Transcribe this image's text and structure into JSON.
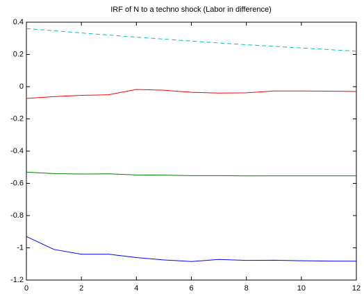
{
  "chart_data": {
    "type": "line",
    "title": "IRF of N to a techno shock (Labor in difference)",
    "x": [
      0,
      1,
      2,
      3,
      4,
      5,
      6,
      7,
      8,
      9,
      10,
      11,
      12
    ],
    "series": [
      {
        "color": "#00bfbf",
        "dashed": true,
        "values": [
          0.36,
          0.347,
          0.333,
          0.32,
          0.307,
          0.295,
          0.283,
          0.271,
          0.26,
          0.25,
          0.24,
          0.23,
          0.22
        ]
      },
      {
        "color": "#ff0000",
        "dashed": false,
        "values": [
          -0.073,
          -0.062,
          -0.054,
          -0.05,
          -0.017,
          -0.022,
          -0.035,
          -0.04,
          -0.038,
          -0.027,
          -0.027,
          -0.028,
          -0.03
        ]
      },
      {
        "color": "#008000",
        "dashed": false,
        "values": [
          -0.53,
          -0.54,
          -0.542,
          -0.541,
          -0.548,
          -0.549,
          -0.552,
          -0.552,
          -0.554,
          -0.553,
          -0.553,
          -0.553,
          -0.553
        ]
      },
      {
        "color": "#0000ff",
        "dashed": false,
        "values": [
          -0.93,
          -1.01,
          -1.04,
          -1.04,
          -1.06,
          -1.075,
          -1.085,
          -1.072,
          -1.078,
          -1.077,
          -1.08,
          -1.082,
          -1.083
        ]
      }
    ],
    "xlim": [
      0,
      12
    ],
    "xticks": [
      0,
      2,
      4,
      6,
      8,
      10,
      12
    ],
    "ylim": [
      -1.2,
      0.4
    ],
    "yticks": [
      -1.2,
      -1,
      -0.8,
      -0.6,
      -0.4,
      -0.2,
      0,
      0.2,
      0.4
    ],
    "grid": false
  }
}
